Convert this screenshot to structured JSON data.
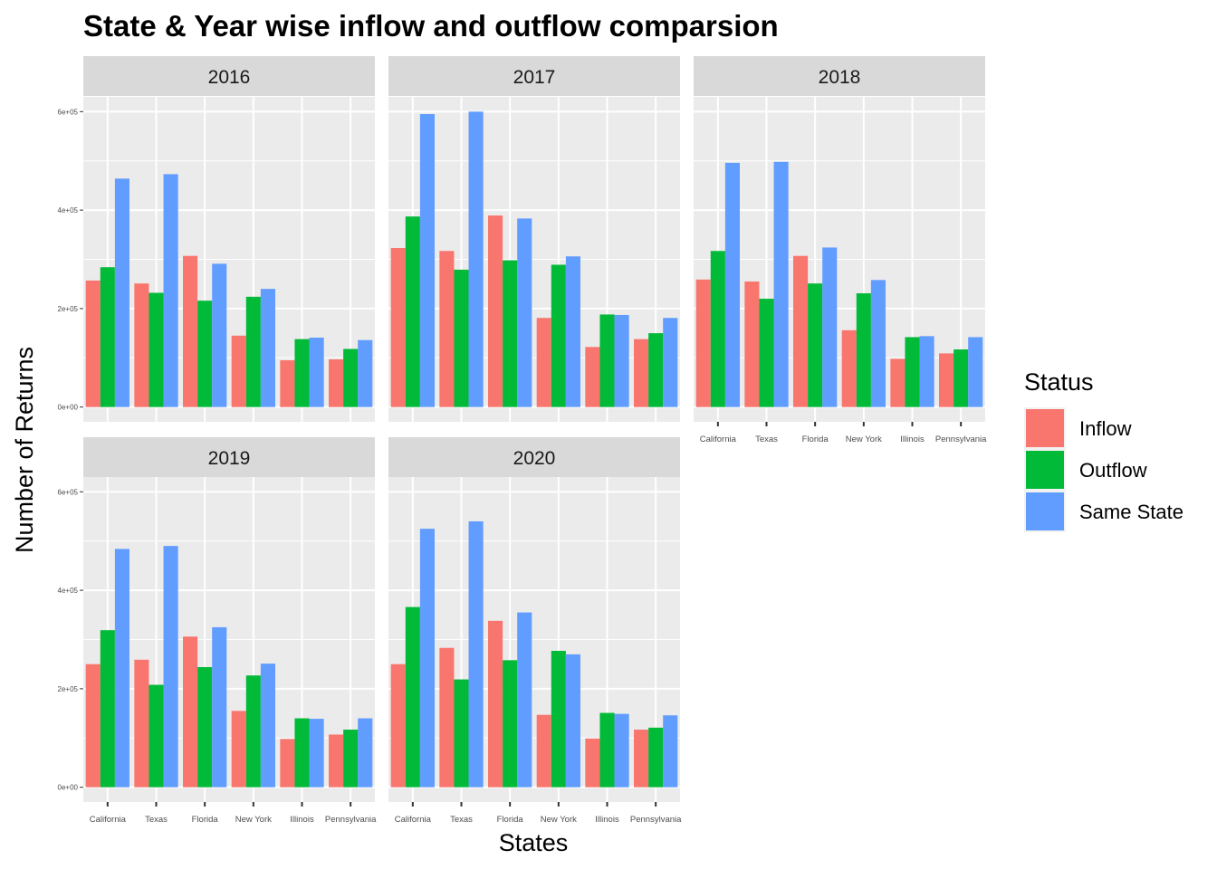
{
  "chart_data": {
    "type": "bar",
    "title": "State & Year wise inflow and outflow comparsion",
    "xlabel": "States",
    "ylabel": "Number of Returns",
    "categories": [
      "California",
      "Texas",
      "Florida",
      "New York",
      "Illinois",
      "Pennsylvania"
    ],
    "y_ticks": [
      0,
      200000,
      400000,
      600000
    ],
    "y_tick_labels": [
      "0e+00",
      "2e+05",
      "4e+05",
      "6e+05"
    ],
    "ylim": [
      -30000,
      630000
    ],
    "grid": true,
    "legend": {
      "title": "Status",
      "position": "right",
      "items": [
        {
          "name": "Inflow",
          "color": "#F8766D"
        },
        {
          "name": "Outflow",
          "color": "#00BA38"
        },
        {
          "name": "Same State",
          "color": "#619CFF"
        }
      ]
    },
    "facets": [
      {
        "label": "2016",
        "series": [
          {
            "name": "Inflow",
            "values": [
              257000,
              251000,
              307000,
              145000,
              95000,
              97000
            ]
          },
          {
            "name": "Outflow",
            "values": [
              284000,
              232000,
              216000,
              224000,
              138000,
              118000
            ]
          },
          {
            "name": "Same State",
            "values": [
              464000,
              473000,
              291000,
              240000,
              141000,
              136000
            ]
          }
        ]
      },
      {
        "label": "2017",
        "series": [
          {
            "name": "Inflow",
            "values": [
              323000,
              317000,
              389000,
              181000,
              122000,
              138000
            ]
          },
          {
            "name": "Outflow",
            "values": [
              387000,
              279000,
              298000,
              289000,
              188000,
              150000
            ]
          },
          {
            "name": "Same State",
            "values": [
              595000,
              600000,
              383000,
              306000,
              187000,
              181000
            ]
          }
        ]
      },
      {
        "label": "2018",
        "series": [
          {
            "name": "Inflow",
            "values": [
              259000,
              255000,
              307000,
              156000,
              98000,
              109000
            ]
          },
          {
            "name": "Outflow",
            "values": [
              317000,
              220000,
              251000,
              231000,
              142000,
              117000
            ]
          },
          {
            "name": "Same State",
            "values": [
              496000,
              498000,
              324000,
              258000,
              144000,
              142000
            ]
          }
        ]
      },
      {
        "label": "2019",
        "series": [
          {
            "name": "Inflow",
            "values": [
              250000,
              259000,
              306000,
              155000,
              98000,
              107000
            ]
          },
          {
            "name": "Outflow",
            "values": [
              319000,
              208000,
              244000,
              227000,
              140000,
              117000
            ]
          },
          {
            "name": "Same State",
            "values": [
              484000,
              490000,
              325000,
              251000,
              139000,
              140000
            ]
          }
        ]
      },
      {
        "label": "2020",
        "series": [
          {
            "name": "Inflow",
            "values": [
              250000,
              283000,
              338000,
              147000,
              99000,
              117000
            ]
          },
          {
            "name": "Outflow",
            "values": [
              366000,
              219000,
              258000,
              277000,
              151000,
              121000
            ]
          },
          {
            "name": "Same State",
            "values": [
              525000,
              540000,
              355000,
              270000,
              149000,
              146000
            ]
          }
        ]
      }
    ]
  }
}
